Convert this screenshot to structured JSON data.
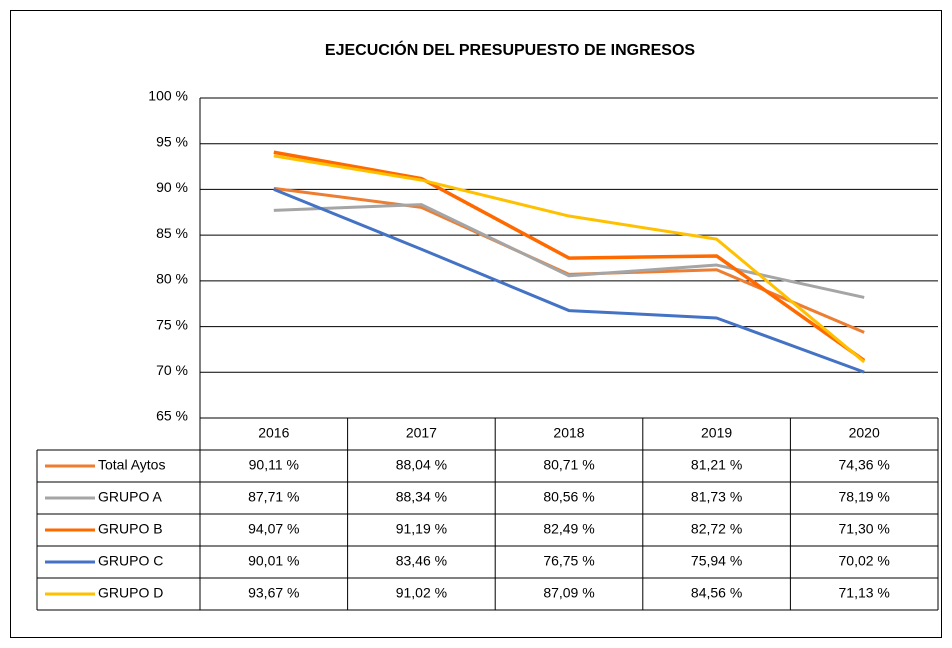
{
  "chart_data": {
    "type": "line",
    "title": "EJECUCIÓN DEL PRESUPUESTO DE INGRESOS",
    "categories": [
      "2016",
      "2017",
      "2018",
      "2019",
      "2020"
    ],
    "ylim": [
      65,
      100
    ],
    "yticks": [
      {
        "value": 65,
        "label": "65 %"
      },
      {
        "value": 70,
        "label": "70 %"
      },
      {
        "value": 75,
        "label": "75 %"
      },
      {
        "value": 80,
        "label": "80 %"
      },
      {
        "value": 85,
        "label": "85 %"
      },
      {
        "value": 90,
        "label": "90 %"
      },
      {
        "value": 95,
        "label": "95 %"
      },
      {
        "value": 100,
        "label": "100 %"
      }
    ],
    "grid": true,
    "series": [
      {
        "name": "Total Aytos",
        "color": "#ED7D31",
        "values": [
          90.11,
          88.04,
          80.71,
          81.21,
          74.36
        ],
        "value_labels": [
          "90,11 %",
          "88,04 %",
          "80,71 %",
          "81,21 %",
          "74,36 %"
        ]
      },
      {
        "name": "GRUPO A",
        "color": "#A5A5A5",
        "values": [
          87.71,
          88.34,
          80.56,
          81.73,
          78.19
        ],
        "value_labels": [
          "87,71 %",
          "88,34 %",
          "80,56 %",
          "81,73 %",
          "78,19 %"
        ]
      },
      {
        "name": "GRUPO B",
        "color": "#FF6A00",
        "values": [
          94.07,
          91.19,
          82.49,
          82.72,
          71.3
        ],
        "value_labels": [
          "94,07 %",
          "91,19 %",
          "82,49 %",
          "82,72 %",
          "71,30 %"
        ]
      },
      {
        "name": "GRUPO C",
        "color": "#4472C4",
        "values": [
          90.01,
          83.46,
          76.75,
          75.94,
          70.02
        ],
        "value_labels": [
          "90,01 %",
          "83,46 %",
          "76,75 %",
          "75,94 %",
          "70,02 %"
        ]
      },
      {
        "name": "GRUPO D",
        "color": "#FFC000",
        "values": [
          93.67,
          91.02,
          87.09,
          84.56,
          71.13
        ],
        "value_labels": [
          "93,67 %",
          "91,02 %",
          "87,09 %",
          "84,56 %",
          "71,13 %"
        ]
      }
    ]
  }
}
